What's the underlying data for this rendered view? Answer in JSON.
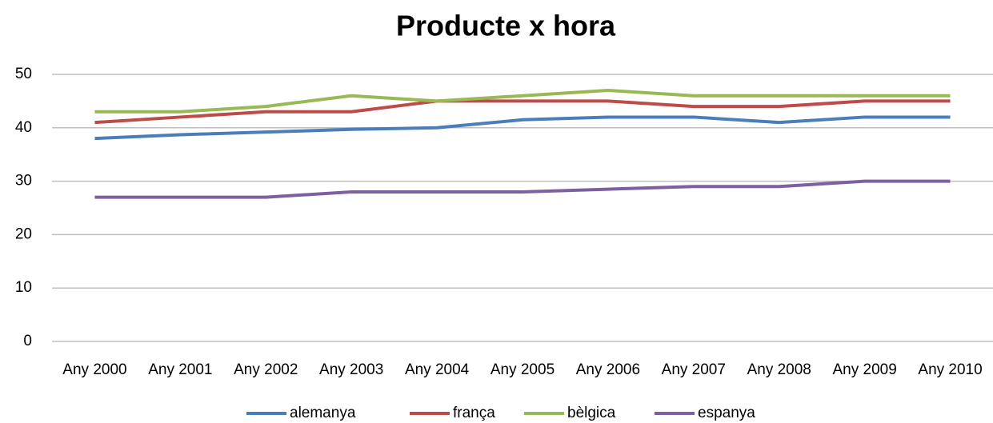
{
  "chart_data": {
    "type": "line",
    "title": "Producte x hora",
    "categories": [
      "Any 2000",
      "Any 2001",
      "Any 2002",
      "Any 2003",
      "Any 2004",
      "Any 2005",
      "Any 2006",
      "Any 2007",
      "Any 2008",
      "Any 2009",
      "Any 2010"
    ],
    "series": [
      {
        "name": "alemanya",
        "color": "#4a7ebb",
        "values": [
          38,
          38.7,
          39.2,
          39.7,
          40,
          41.5,
          42,
          42,
          41,
          42,
          42
        ]
      },
      {
        "name": "frança",
        "color": "#be4b48",
        "values": [
          41,
          42,
          43,
          43,
          45,
          45,
          45,
          44,
          44,
          45,
          45
        ]
      },
      {
        "name": "bèlgica",
        "color": "#98b954",
        "values": [
          43,
          43,
          44,
          46,
          45,
          46,
          47,
          46,
          46,
          46,
          46
        ]
      },
      {
        "name": "espanya",
        "color": "#7d60a0",
        "values": [
          27,
          27,
          27,
          28,
          28,
          28,
          28.5,
          29,
          29,
          30,
          30
        ]
      }
    ],
    "ylim": [
      0,
      50
    ],
    "yticks": [
      0,
      10,
      20,
      30,
      40,
      50
    ],
    "grid": true,
    "legend": "bottom"
  }
}
